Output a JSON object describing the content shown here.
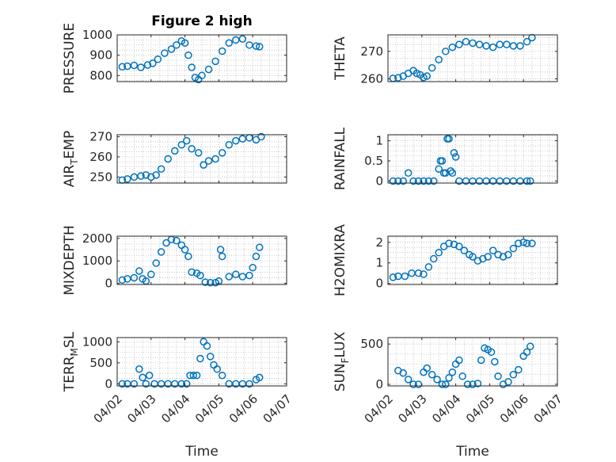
{
  "colors": {
    "marker": "#0072BD",
    "axis": "#262626",
    "grid": "#b4b4b4"
  },
  "chart_data": [
    {
      "type": "scatter",
      "title": "Figure 2 high",
      "ylabel": "PRESSURE",
      "xlabel": "",
      "xlim": [
        0,
        5
      ],
      "ylim": [
        770,
        1000
      ],
      "yticks": [
        {
          "v": 800,
          "label": "800"
        },
        {
          "v": 900,
          "label": "900"
        },
        {
          "v": 1000,
          "label": "1000"
        }
      ],
      "xticks": [],
      "grid": true,
      "series": [
        {
          "x": [
            0.15,
            0.3,
            0.5,
            0.7,
            0.9,
            1.05,
            1.2,
            1.4,
            1.6,
            1.75,
            1.9,
            2.0,
            2.1,
            2.2,
            2.3,
            2.4,
            2.5,
            2.7,
            2.9,
            3.1,
            3.3,
            3.5,
            3.7,
            3.9,
            4.1,
            4.2
          ],
          "y": [
            843,
            846,
            850,
            840,
            852,
            860,
            880,
            910,
            930,
            950,
            970,
            960,
            900,
            840,
            790,
            780,
            800,
            830,
            870,
            920,
            960,
            975,
            980,
            950,
            945,
            942
          ]
        }
      ]
    },
    {
      "type": "scatter",
      "title": "",
      "ylabel": "THETA",
      "xlabel": "",
      "xlim": [
        0,
        5
      ],
      "ylim": [
        259,
        276
      ],
      "yticks": [
        {
          "v": 260,
          "label": "260"
        },
        {
          "v": 270,
          "label": "270"
        }
      ],
      "xticks": [],
      "grid": true,
      "series": [
        {
          "x": [
            0.15,
            0.3,
            0.45,
            0.6,
            0.75,
            0.85,
            0.95,
            1.05,
            1.15,
            1.3,
            1.5,
            1.7,
            1.9,
            2.1,
            2.3,
            2.5,
            2.7,
            2.9,
            3.1,
            3.3,
            3.5,
            3.7,
            3.9,
            4.1,
            4.25
          ],
          "y": [
            260.2,
            260.4,
            261,
            262,
            263,
            262,
            261.5,
            260.5,
            261,
            264,
            267,
            270,
            271.5,
            272.5,
            273.5,
            273,
            272.5,
            272,
            271.5,
            272.5,
            272.5,
            272,
            272,
            273.5,
            275
          ]
        }
      ]
    },
    {
      "type": "scatter",
      "title": "",
      "ylabel": "AIR_TEMP",
      "xlabel": "",
      "xlim": [
        0,
        5
      ],
      "ylim": [
        247,
        271
      ],
      "yticks": [
        {
          "v": 250,
          "label": "250"
        },
        {
          "v": 260,
          "label": "260"
        },
        {
          "v": 270,
          "label": "270"
        }
      ],
      "xticks": [],
      "grid": true,
      "series": [
        {
          "x": [
            0.15,
            0.3,
            0.5,
            0.7,
            0.85,
            1.0,
            1.15,
            1.3,
            1.5,
            1.7,
            1.9,
            2.05,
            2.2,
            2.4,
            2.55,
            2.7,
            2.9,
            3.1,
            3.3,
            3.5,
            3.7,
            3.9,
            4.1,
            4.25
          ],
          "y": [
            248.5,
            249,
            250,
            250.5,
            251,
            250,
            251,
            254,
            259,
            263,
            266,
            268,
            264,
            262,
            256,
            258,
            259,
            262,
            266,
            268,
            269,
            269.5,
            268.5,
            270
          ]
        }
      ]
    },
    {
      "type": "scatter",
      "title": "",
      "ylabel": "RAINFALL",
      "xlabel": "",
      "xlim": [
        0,
        5
      ],
      "ylim": [
        -0.05,
        1.15
      ],
      "yticks": [
        {
          "v": 0,
          "label": "0"
        },
        {
          "v": 0.5,
          "label": "0.5"
        },
        {
          "v": 1,
          "label": "1"
        }
      ],
      "xticks": [],
      "grid": true,
      "series": [
        {
          "x": [
            0.15,
            0.3,
            0.45,
            0.6,
            0.75,
            0.9,
            1.05,
            1.2,
            1.35,
            1.5,
            1.55,
            1.6,
            1.65,
            1.7,
            1.75,
            1.8,
            1.85,
            1.9,
            1.95,
            2.0,
            2.1,
            2.3,
            2.5,
            2.7,
            2.9,
            3.1,
            3.3,
            3.5,
            3.7,
            3.9,
            4.1,
            4.2
          ],
          "y": [
            0,
            0,
            0,
            0.2,
            0,
            0,
            0,
            0,
            0,
            0.3,
            0.5,
            0.5,
            0.2,
            0.2,
            1.05,
            1.05,
            0.25,
            0.2,
            0.7,
            0.6,
            0,
            0,
            0,
            0,
            0,
            0,
            0,
            0,
            0,
            0,
            0,
            0
          ]
        }
      ]
    },
    {
      "type": "scatter",
      "title": "",
      "ylabel": "MIXDEPTH",
      "xlabel": "",
      "xlim": [
        0,
        5
      ],
      "ylim": [
        -50,
        2100
      ],
      "yticks": [
        {
          "v": 0,
          "label": "0"
        },
        {
          "v": 1000,
          "label": "1000"
        },
        {
          "v": 2000,
          "label": "2000"
        }
      ],
      "xticks": [],
      "grid": true,
      "series": [
        {
          "x": [
            0.15,
            0.3,
            0.5,
            0.65,
            0.75,
            0.85,
            1.0,
            1.15,
            1.3,
            1.45,
            1.6,
            1.75,
            1.9,
            2.0,
            2.1,
            2.2,
            2.35,
            2.45,
            2.6,
            2.75,
            2.9,
            3.0,
            3.05,
            3.1,
            3.3,
            3.5,
            3.7,
            3.9,
            4.0,
            4.1,
            4.2
          ],
          "y": [
            150,
            200,
            250,
            550,
            200,
            100,
            400,
            900,
            1400,
            1800,
            1950,
            1900,
            1700,
            1500,
            1200,
            500,
            450,
            350,
            50,
            30,
            30,
            100,
            1500,
            1200,
            300,
            400,
            300,
            350,
            700,
            1200,
            1600
          ]
        }
      ]
    },
    {
      "type": "scatter",
      "title": "",
      "ylabel": "H2OMIXRA",
      "xlabel": "",
      "xlim": [
        0,
        5
      ],
      "ylim": [
        -0.05,
        2.3
      ],
      "yticks": [
        {
          "v": 0,
          "label": "0"
        },
        {
          "v": 1,
          "label": "1"
        },
        {
          "v": 2,
          "label": "2"
        }
      ],
      "xticks": [],
      "grid": true,
      "series": [
        {
          "x": [
            0.15,
            0.3,
            0.5,
            0.7,
            0.9,
            1.05,
            1.2,
            1.35,
            1.5,
            1.65,
            1.8,
            1.95,
            2.1,
            2.25,
            2.4,
            2.5,
            2.65,
            2.8,
            2.95,
            3.1,
            3.25,
            3.4,
            3.55,
            3.7,
            3.85,
            4.0,
            4.1,
            4.25
          ],
          "y": [
            0.3,
            0.35,
            0.35,
            0.5,
            0.5,
            0.45,
            0.8,
            1.2,
            1.5,
            1.8,
            1.95,
            1.9,
            1.8,
            1.6,
            1.4,
            1.3,
            1.1,
            1.2,
            1.3,
            1.6,
            1.4,
            1.3,
            1.4,
            1.7,
            1.95,
            2.0,
            1.95,
            1.95
          ]
        }
      ]
    },
    {
      "type": "scatter",
      "title": "",
      "ylabel": "TERR_MSL",
      "xlabel": "Time",
      "xlim": [
        0,
        5
      ],
      "ylim": [
        -50,
        1100
      ],
      "yticks": [
        {
          "v": 0,
          "label": "0"
        },
        {
          "v": 500,
          "label": "500"
        },
        {
          "v": 1000,
          "label": "1000"
        }
      ],
      "xticks": [
        {
          "v": 0,
          "label": "04/02"
        },
        {
          "v": 1,
          "label": "04/03"
        },
        {
          "v": 2,
          "label": "04/04"
        },
        {
          "v": 3,
          "label": "04/05"
        },
        {
          "v": 4,
          "label": "04/06"
        },
        {
          "v": 5,
          "label": "04/07"
        }
      ],
      "grid": true,
      "series": [
        {
          "x": [
            0.15,
            0.3,
            0.5,
            0.65,
            0.75,
            0.85,
            0.95,
            1.1,
            1.3,
            1.5,
            1.7,
            1.9,
            2.05,
            2.15,
            2.25,
            2.35,
            2.45,
            2.55,
            2.65,
            2.75,
            2.85,
            2.95,
            3.1,
            3.3,
            3.5,
            3.7,
            3.9,
            4.1,
            4.2
          ],
          "y": [
            0,
            0,
            0,
            350,
            150,
            0,
            200,
            0,
            0,
            0,
            0,
            0,
            0,
            200,
            200,
            200,
            600,
            1000,
            900,
            650,
            450,
            350,
            200,
            0,
            0,
            0,
            0,
            100,
            150
          ]
        }
      ]
    },
    {
      "type": "scatter",
      "title": "",
      "ylabel": "SUN_FLUX",
      "xlabel": "Time",
      "xlim": [
        0,
        5
      ],
      "ylim": [
        -20,
        580
      ],
      "yticks": [
        {
          "v": 0,
          "label": "0"
        },
        {
          "v": 500,
          "label": "500"
        }
      ],
      "xticks": [
        {
          "v": 0,
          "label": "04/02"
        },
        {
          "v": 1,
          "label": "04/03"
        },
        {
          "v": 2,
          "label": "04/04"
        },
        {
          "v": 3,
          "label": "04/05"
        },
        {
          "v": 4,
          "label": "04/06"
        },
        {
          "v": 5,
          "label": "04/07"
        }
      ],
      "grid": true,
      "series": [
        {
          "x": [
            0.3,
            0.45,
            0.6,
            0.75,
            0.9,
            1.05,
            1.15,
            1.3,
            1.45,
            1.6,
            1.7,
            1.8,
            1.9,
            2.0,
            2.1,
            2.2,
            2.35,
            2.5,
            2.65,
            2.75,
            2.85,
            2.95,
            3.05,
            3.15,
            3.25,
            3.4,
            3.55,
            3.7,
            3.85,
            4.0,
            4.1,
            4.2
          ],
          "y": [
            170,
            140,
            60,
            0,
            0,
            150,
            200,
            120,
            60,
            0,
            0,
            80,
            150,
            250,
            300,
            100,
            0,
            0,
            10,
            300,
            450,
            430,
            400,
            280,
            100,
            0,
            30,
            120,
            180,
            350,
            400,
            470
          ]
        }
      ]
    }
  ]
}
